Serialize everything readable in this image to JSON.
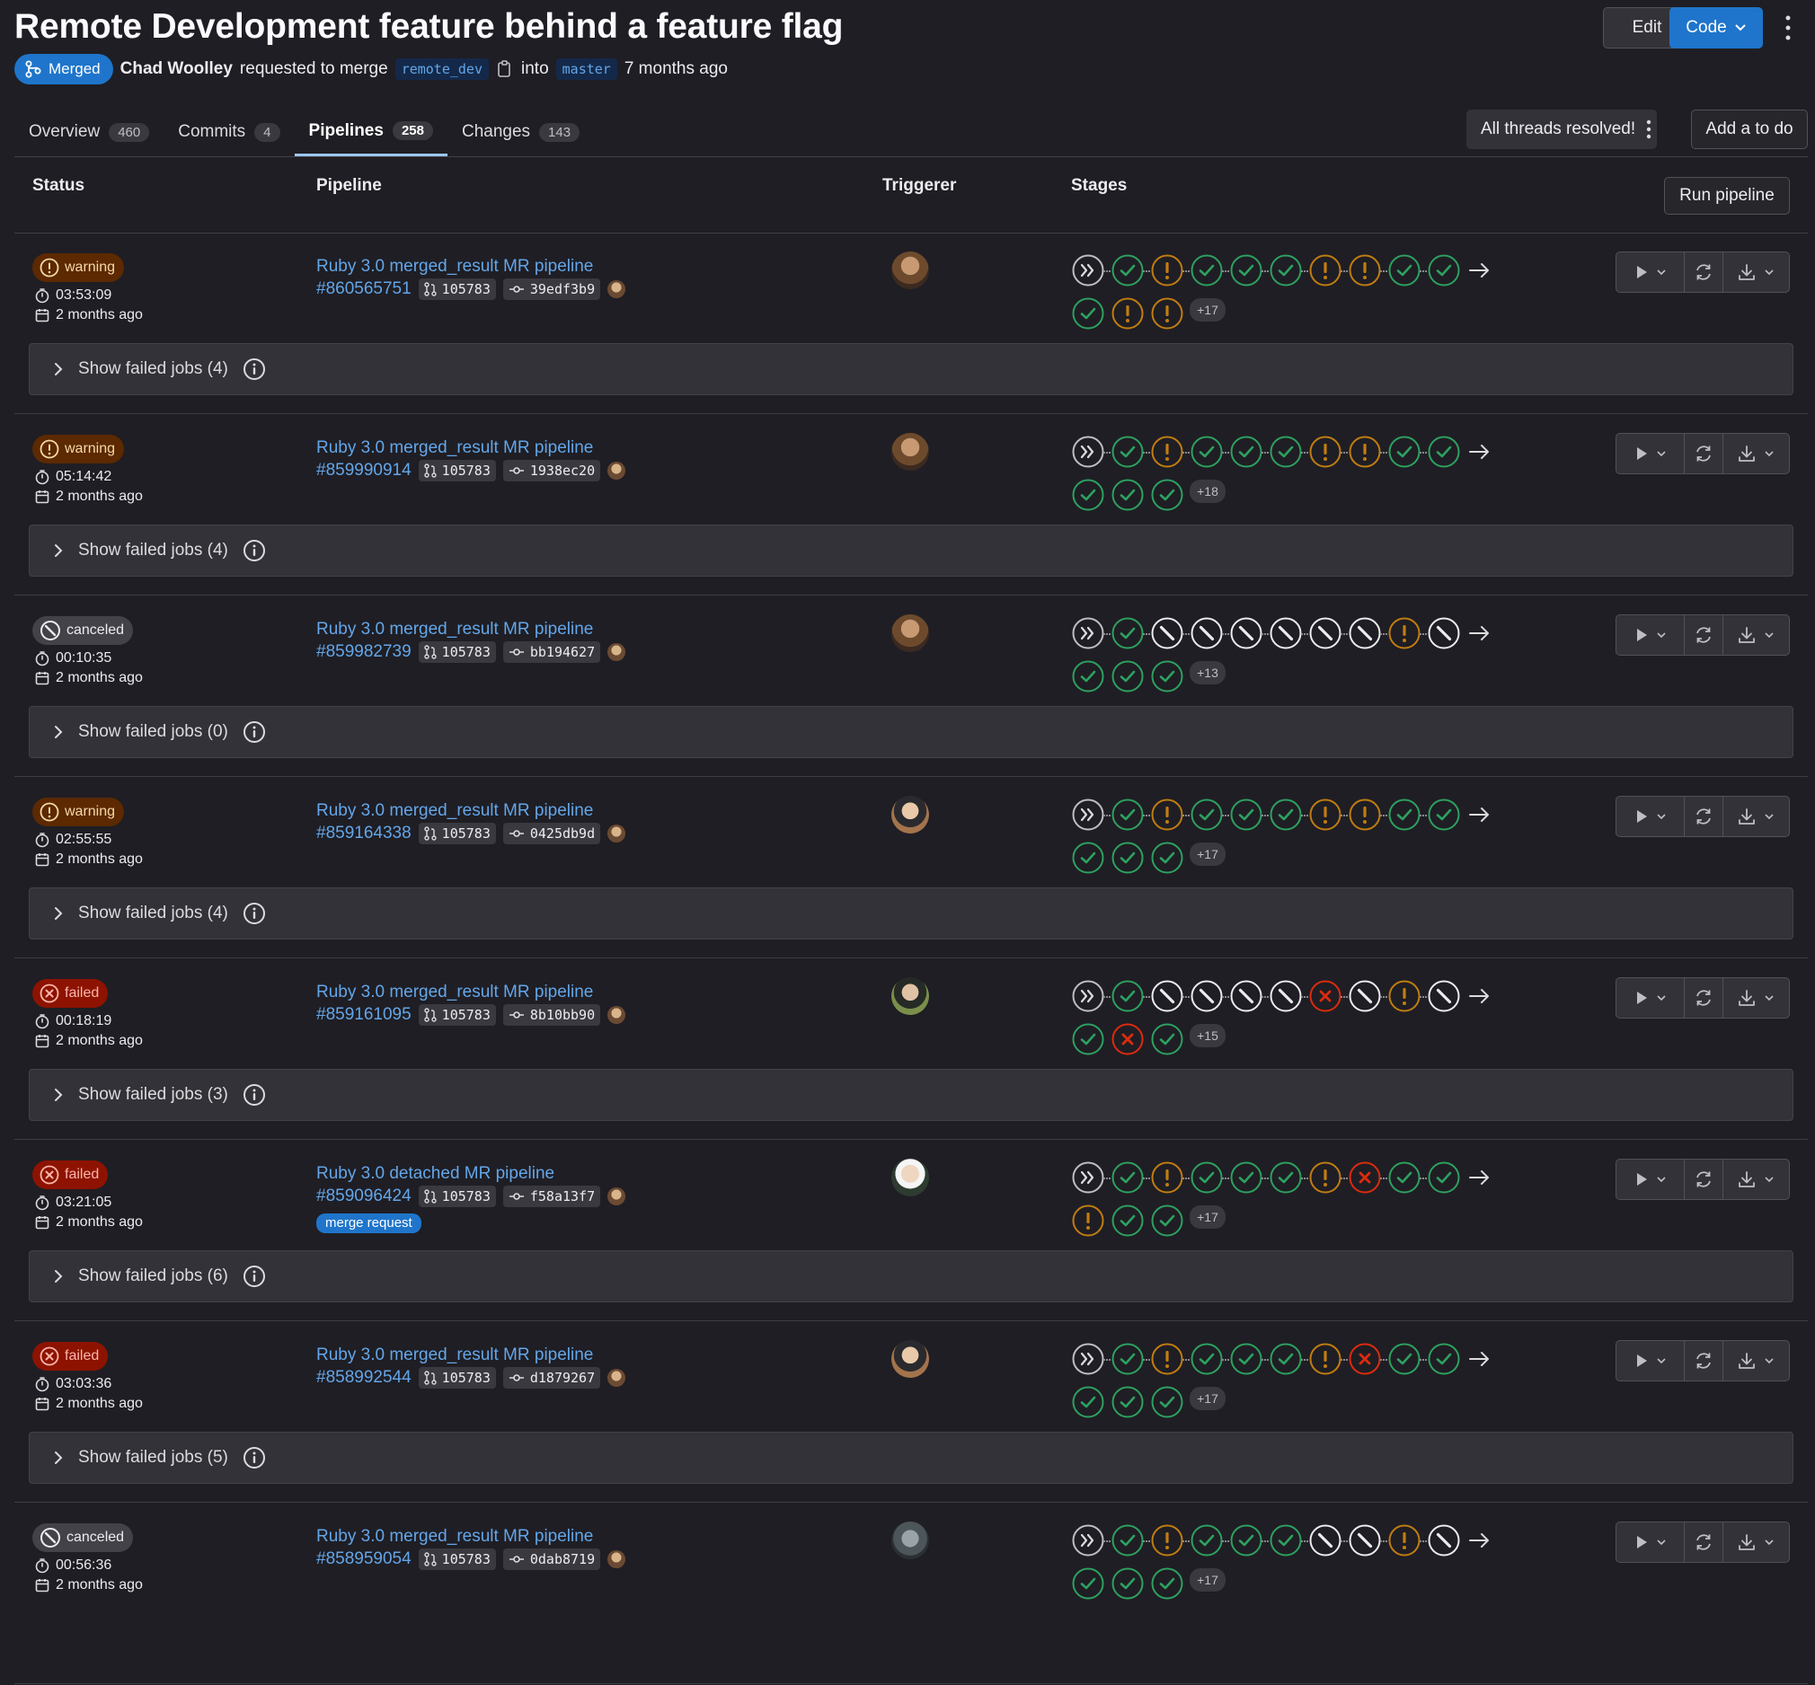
{
  "header": {
    "title": "Remote Development feature behind a feature flag",
    "edit_label": "Edit",
    "code_label": "Code",
    "status_label": "Merged",
    "author": "Chad Woolley",
    "requested_text": "requested to merge",
    "source_branch": "remote_dev",
    "into_text": "into",
    "target_branch": "master",
    "time_ago": "7 months ago"
  },
  "tabs": [
    {
      "label": "Overview",
      "count": "460"
    },
    {
      "label": "Commits",
      "count": "4"
    },
    {
      "label": "Pipelines",
      "count": "258"
    },
    {
      "label": "Changes",
      "count": "143"
    }
  ],
  "threads_label": "All threads resolved!",
  "todo_label": "Add a to do",
  "table": {
    "headers": {
      "status": "Status",
      "pipeline": "Pipeline",
      "triggerer": "Triggerer",
      "stages": "Stages"
    },
    "run_pipeline_label": "Run pipeline"
  },
  "colors": {
    "success": "#2da160",
    "warning": "#c17d10",
    "failed": "#dd2b0e",
    "canceled": "#ececef",
    "link": "#63a6e9"
  },
  "rows": [
    {
      "status": "warning",
      "status_label": "warning",
      "duration": "03:53:09",
      "finished": "2 months ago",
      "name": "Ruby 3.0 merged_result MR pipeline",
      "id": "#860565751",
      "mr": "105783",
      "sha": "39edf3b9",
      "stages1": [
        "skipped",
        "success",
        "warning",
        "success",
        "success",
        "success",
        "warning",
        "warning",
        "success",
        "success"
      ],
      "stages2": [
        "success",
        "warning",
        "warning"
      ],
      "more": "+17",
      "failed_jobs": "Show failed jobs (4)"
    },
    {
      "status": "warning",
      "status_label": "warning",
      "duration": "05:14:42",
      "finished": "2 months ago",
      "name": "Ruby 3.0 merged_result MR pipeline",
      "id": "#859990914",
      "mr": "105783",
      "sha": "1938ec20",
      "stages1": [
        "skipped",
        "success",
        "warning",
        "success",
        "success",
        "success",
        "warning",
        "warning",
        "success",
        "success"
      ],
      "stages2": [
        "success",
        "success",
        "success"
      ],
      "more": "+18",
      "failed_jobs": "Show failed jobs (4)"
    },
    {
      "status": "canceled",
      "status_label": "canceled",
      "duration": "00:10:35",
      "finished": "2 months ago",
      "name": "Ruby 3.0 merged_result MR pipeline",
      "id": "#859982739",
      "mr": "105783",
      "sha": "bb194627",
      "stages1": [
        "skipped",
        "success",
        "canceled",
        "canceled",
        "canceled",
        "canceled",
        "canceled",
        "canceled",
        "warning",
        "canceled"
      ],
      "stages2": [
        "success",
        "success",
        "success"
      ],
      "more": "+13",
      "failed_jobs": "Show failed jobs (0)"
    },
    {
      "status": "warning",
      "status_label": "warning",
      "duration": "02:55:55",
      "finished": "2 months ago",
      "name": "Ruby 3.0 merged_result MR pipeline",
      "id": "#859164338",
      "mr": "105783",
      "sha": "0425db9d",
      "stages1": [
        "skipped",
        "success",
        "warning",
        "success",
        "success",
        "success",
        "warning",
        "warning",
        "success",
        "success"
      ],
      "stages2": [
        "success",
        "success",
        "success"
      ],
      "more": "+17",
      "failed_jobs": "Show failed jobs (4)"
    },
    {
      "status": "failed",
      "status_label": "failed",
      "duration": "00:18:19",
      "finished": "2 months ago",
      "name": "Ruby 3.0 merged_result MR pipeline",
      "id": "#859161095",
      "mr": "105783",
      "sha": "8b10bb90",
      "stages1": [
        "skipped",
        "success",
        "canceled",
        "canceled",
        "canceled",
        "canceled",
        "failed",
        "canceled",
        "warning",
        "canceled"
      ],
      "stages2": [
        "success",
        "failed",
        "success"
      ],
      "more": "+15",
      "failed_jobs": "Show failed jobs (3)"
    },
    {
      "status": "failed",
      "status_label": "failed",
      "duration": "03:21:05",
      "finished": "2 months ago",
      "name": "Ruby 3.0 detached MR pipeline",
      "id": "#859096424",
      "mr": "105783",
      "sha": "f58a13f7",
      "badge": "merge request",
      "stages1": [
        "skipped",
        "success",
        "warning",
        "success",
        "success",
        "success",
        "warning",
        "failed",
        "success",
        "success"
      ],
      "stages2": [
        "warning",
        "success",
        "success"
      ],
      "more": "+17",
      "failed_jobs": "Show failed jobs (6)"
    },
    {
      "status": "failed",
      "status_label": "failed",
      "duration": "03:03:36",
      "finished": "2 months ago",
      "name": "Ruby 3.0 merged_result MR pipeline",
      "id": "#858992544",
      "mr": "105783",
      "sha": "d1879267",
      "stages1": [
        "skipped",
        "success",
        "warning",
        "success",
        "success",
        "success",
        "warning",
        "failed",
        "success",
        "success"
      ],
      "stages2": [
        "success",
        "success",
        "success"
      ],
      "more": "+17",
      "failed_jobs": "Show failed jobs (5)"
    },
    {
      "status": "canceled",
      "status_label": "canceled",
      "duration": "00:56:36",
      "finished": "2 months ago",
      "name": "Ruby 3.0 merged_result MR pipeline",
      "id": "#858959054",
      "mr": "105783",
      "sha": "0dab8719",
      "stages1": [
        "skipped",
        "success",
        "warning",
        "success",
        "success",
        "success",
        "canceled",
        "canceled",
        "warning",
        "canceled"
      ],
      "stages2": [
        "success",
        "success",
        "success"
      ],
      "more": "+17",
      "failed_jobs": ""
    }
  ]
}
